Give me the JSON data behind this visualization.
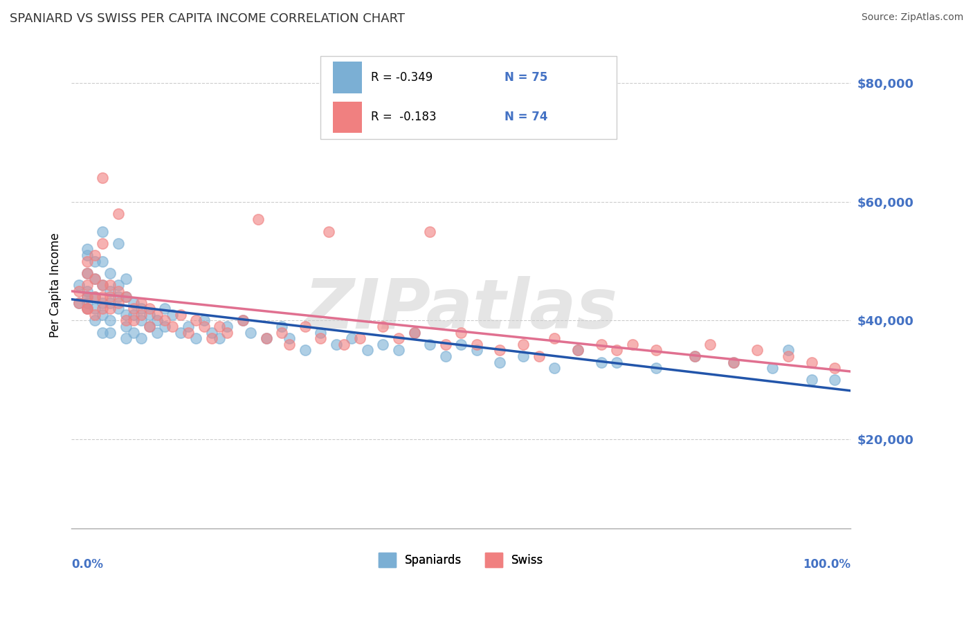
{
  "title": "SPANIARD VS SWISS PER CAPITA INCOME CORRELATION CHART",
  "source": "Source: ZipAtlas.com",
  "ylabel": "Per Capita Income",
  "y_ticks": [
    20000,
    40000,
    60000,
    80000
  ],
  "y_tick_labels": [
    "$20,000",
    "$40,000",
    "$60,000",
    "$80,000"
  ],
  "y_min": 5000,
  "y_max": 87000,
  "x_min": 0.0,
  "x_max": 1.0,
  "spaniards_color": "#7bafd4",
  "swiss_color": "#f08080",
  "spaniards_line_color": "#2255aa",
  "swiss_line_color": "#e07090",
  "watermark": "ZIPatlas",
  "background_color": "#ffffff",
  "grid_color": "#cccccc",
  "spaniards_scatter": [
    [
      0.01,
      43000
    ],
    [
      0.01,
      46000
    ],
    [
      0.02,
      42000
    ],
    [
      0.02,
      44000
    ],
    [
      0.02,
      48000
    ],
    [
      0.02,
      51000
    ],
    [
      0.02,
      52000
    ],
    [
      0.02,
      45000
    ],
    [
      0.02,
      43000
    ],
    [
      0.03,
      47000
    ],
    [
      0.03,
      50000
    ],
    [
      0.03,
      44000
    ],
    [
      0.03,
      42000
    ],
    [
      0.03,
      40000
    ],
    [
      0.04,
      55000
    ],
    [
      0.04,
      50000
    ],
    [
      0.04,
      46000
    ],
    [
      0.04,
      43000
    ],
    [
      0.04,
      41000
    ],
    [
      0.04,
      38000
    ],
    [
      0.05,
      48000
    ],
    [
      0.05,
      45000
    ],
    [
      0.05,
      43000
    ],
    [
      0.05,
      40000
    ],
    [
      0.05,
      38000
    ],
    [
      0.06,
      53000
    ],
    [
      0.06,
      46000
    ],
    [
      0.06,
      44000
    ],
    [
      0.06,
      42000
    ],
    [
      0.07,
      47000
    ],
    [
      0.07,
      44000
    ],
    [
      0.07,
      41000
    ],
    [
      0.07,
      39000
    ],
    [
      0.07,
      37000
    ],
    [
      0.08,
      43000
    ],
    [
      0.08,
      41000
    ],
    [
      0.08,
      38000
    ],
    [
      0.09,
      42000
    ],
    [
      0.09,
      40000
    ],
    [
      0.09,
      37000
    ],
    [
      0.1,
      41000
    ],
    [
      0.1,
      39000
    ],
    [
      0.11,
      40000
    ],
    [
      0.11,
      38000
    ],
    [
      0.12,
      42000
    ],
    [
      0.12,
      39000
    ],
    [
      0.13,
      41000
    ],
    [
      0.14,
      38000
    ],
    [
      0.15,
      39000
    ],
    [
      0.16,
      37000
    ],
    [
      0.17,
      40000
    ],
    [
      0.18,
      38000
    ],
    [
      0.19,
      37000
    ],
    [
      0.2,
      39000
    ],
    [
      0.22,
      40000
    ],
    [
      0.23,
      38000
    ],
    [
      0.25,
      37000
    ],
    [
      0.27,
      39000
    ],
    [
      0.28,
      37000
    ],
    [
      0.3,
      35000
    ],
    [
      0.32,
      38000
    ],
    [
      0.34,
      36000
    ],
    [
      0.36,
      37000
    ],
    [
      0.38,
      35000
    ],
    [
      0.4,
      36000
    ],
    [
      0.42,
      35000
    ],
    [
      0.44,
      38000
    ],
    [
      0.46,
      36000
    ],
    [
      0.48,
      34000
    ],
    [
      0.5,
      36000
    ],
    [
      0.52,
      35000
    ],
    [
      0.55,
      33000
    ],
    [
      0.58,
      34000
    ],
    [
      0.62,
      32000
    ],
    [
      0.65,
      35000
    ],
    [
      0.68,
      33000
    ],
    [
      0.7,
      33000
    ],
    [
      0.75,
      32000
    ],
    [
      0.8,
      34000
    ],
    [
      0.85,
      33000
    ],
    [
      0.9,
      32000
    ],
    [
      0.92,
      35000
    ],
    [
      0.95,
      30000
    ],
    [
      0.98,
      30000
    ]
  ],
  "swiss_scatter": [
    [
      0.01,
      43000
    ],
    [
      0.01,
      45000
    ],
    [
      0.02,
      42000
    ],
    [
      0.02,
      46000
    ],
    [
      0.02,
      50000
    ],
    [
      0.02,
      48000
    ],
    [
      0.02,
      44000
    ],
    [
      0.02,
      42000
    ],
    [
      0.03,
      47000
    ],
    [
      0.03,
      44000
    ],
    [
      0.03,
      51000
    ],
    [
      0.03,
      41000
    ],
    [
      0.04,
      46000
    ],
    [
      0.04,
      44000
    ],
    [
      0.04,
      53000
    ],
    [
      0.04,
      64000
    ],
    [
      0.04,
      42000
    ],
    [
      0.05,
      46000
    ],
    [
      0.05,
      44000
    ],
    [
      0.05,
      42000
    ],
    [
      0.06,
      45000
    ],
    [
      0.06,
      43000
    ],
    [
      0.06,
      58000
    ],
    [
      0.07,
      44000
    ],
    [
      0.07,
      40000
    ],
    [
      0.08,
      42000
    ],
    [
      0.08,
      40000
    ],
    [
      0.09,
      43000
    ],
    [
      0.09,
      41000
    ],
    [
      0.1,
      42000
    ],
    [
      0.1,
      39000
    ],
    [
      0.11,
      41000
    ],
    [
      0.12,
      40000
    ],
    [
      0.13,
      39000
    ],
    [
      0.14,
      41000
    ],
    [
      0.15,
      38000
    ],
    [
      0.16,
      40000
    ],
    [
      0.17,
      39000
    ],
    [
      0.18,
      37000
    ],
    [
      0.19,
      39000
    ],
    [
      0.2,
      38000
    ],
    [
      0.22,
      40000
    ],
    [
      0.24,
      57000
    ],
    [
      0.25,
      37000
    ],
    [
      0.27,
      38000
    ],
    [
      0.28,
      36000
    ],
    [
      0.3,
      39000
    ],
    [
      0.32,
      37000
    ],
    [
      0.33,
      55000
    ],
    [
      0.35,
      36000
    ],
    [
      0.37,
      37000
    ],
    [
      0.4,
      39000
    ],
    [
      0.42,
      37000
    ],
    [
      0.44,
      38000
    ],
    [
      0.46,
      55000
    ],
    [
      0.48,
      36000
    ],
    [
      0.5,
      38000
    ],
    [
      0.52,
      36000
    ],
    [
      0.55,
      35000
    ],
    [
      0.58,
      36000
    ],
    [
      0.6,
      34000
    ],
    [
      0.62,
      37000
    ],
    [
      0.65,
      35000
    ],
    [
      0.68,
      36000
    ],
    [
      0.7,
      35000
    ],
    [
      0.72,
      36000
    ],
    [
      0.75,
      35000
    ],
    [
      0.8,
      34000
    ],
    [
      0.82,
      36000
    ],
    [
      0.85,
      33000
    ],
    [
      0.88,
      35000
    ],
    [
      0.92,
      34000
    ],
    [
      0.95,
      33000
    ],
    [
      0.98,
      32000
    ]
  ]
}
